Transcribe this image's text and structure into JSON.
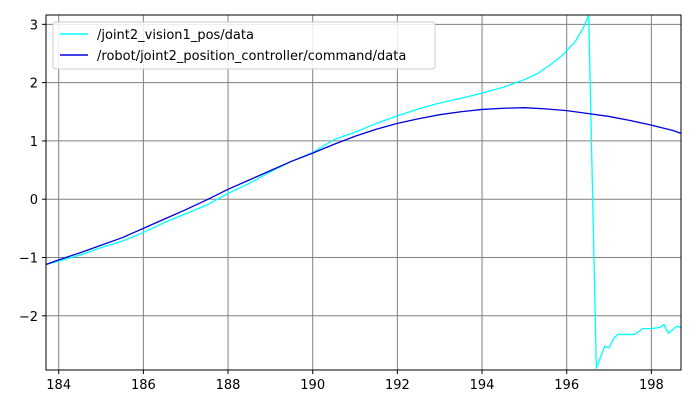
{
  "chart_data": {
    "type": "line",
    "xlim": [
      183.7,
      198.7
    ],
    "ylim": [
      -2.93,
      3.16
    ],
    "x_ticks": [
      184,
      186,
      188,
      190,
      192,
      194,
      196,
      198
    ],
    "y_ticks": [
      -2,
      -1,
      0,
      1,
      2,
      3
    ],
    "x_tick_labels": [
      "184",
      "186",
      "188",
      "190",
      "192",
      "194",
      "196",
      "198"
    ],
    "y_tick_labels": [
      "−2",
      "−1",
      "0",
      "1",
      "2",
      "3"
    ],
    "grid": true,
    "legend": "top-left",
    "series": [
      {
        "name": "/joint2_vision1_pos/data",
        "color": "#00ffff",
        "x": [
          183.7,
          184.0,
          184.5,
          185.0,
          185.5,
          186.0,
          186.5,
          187.0,
          187.5,
          188.0,
          188.5,
          189.0,
          189.5,
          190.0,
          190.5,
          191.0,
          191.5,
          192.0,
          192.5,
          193.0,
          193.5,
          194.0,
          194.5,
          195.0,
          195.3,
          195.6,
          195.9,
          196.2,
          196.4,
          196.52,
          196.7,
          196.9,
          197.0,
          197.1,
          197.2,
          197.4,
          197.6,
          197.8,
          198.0,
          198.2,
          198.3,
          198.4,
          198.5,
          198.6,
          198.7
        ],
        "y": [
          -1.12,
          -1.06,
          -0.96,
          -0.83,
          -0.72,
          -0.57,
          -0.4,
          -0.25,
          -0.1,
          0.1,
          0.27,
          0.47,
          0.65,
          0.8,
          1.02,
          1.15,
          1.3,
          1.43,
          1.55,
          1.65,
          1.73,
          1.82,
          1.92,
          2.05,
          2.15,
          2.3,
          2.47,
          2.7,
          2.95,
          3.16,
          -2.9,
          -2.52,
          -2.55,
          -2.4,
          -2.32,
          -2.32,
          -2.32,
          -2.22,
          -2.22,
          -2.2,
          -2.15,
          -2.3,
          -2.24,
          -2.18,
          -2.2
        ]
      },
      {
        "name": "/robot/joint2_position_controller/command/data",
        "color": "#0000dd",
        "x": [
          183.7,
          184.0,
          184.5,
          185.0,
          185.5,
          186.0,
          186.5,
          187.0,
          187.5,
          188.0,
          188.5,
          189.0,
          189.5,
          190.0,
          190.5,
          191.0,
          191.5,
          192.0,
          192.5,
          193.0,
          193.5,
          194.0,
          194.5,
          195.0,
          195.5,
          196.0,
          196.5,
          197.0,
          197.5,
          198.0,
          198.5,
          198.7
        ],
        "y": [
          -1.12,
          -1.04,
          -0.92,
          -0.79,
          -0.66,
          -0.5,
          -0.34,
          -0.18,
          -0.01,
          0.17,
          0.33,
          0.49,
          0.65,
          0.79,
          0.94,
          1.08,
          1.2,
          1.3,
          1.38,
          1.45,
          1.5,
          1.54,
          1.56,
          1.57,
          1.55,
          1.52,
          1.47,
          1.42,
          1.35,
          1.27,
          1.18,
          1.13
        ]
      }
    ]
  }
}
